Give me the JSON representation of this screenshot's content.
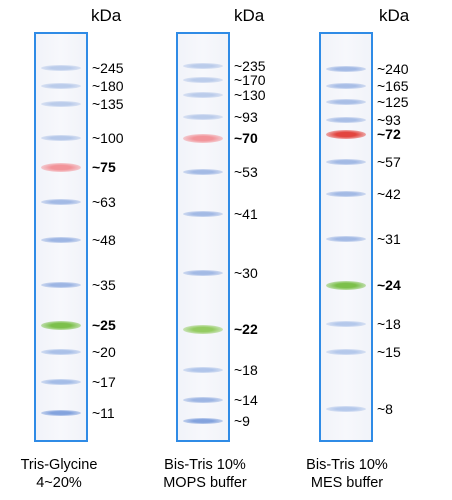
{
  "lanes": [
    {
      "unit": "kDa",
      "caption_line1": "Tris-Glycine",
      "caption_line2": "4~20%",
      "bands": [
        {
          "label": "~245",
          "bold": false,
          "color": "#8aa8dd",
          "intensity": 0.55
        },
        {
          "label": "~180",
          "bold": false,
          "color": "#8aa8dd",
          "intensity": 0.55
        },
        {
          "label": "~135",
          "bold": false,
          "color": "#8aa8dd",
          "intensity": 0.55
        },
        {
          "label": "~100",
          "bold": false,
          "color": "#8aa8dd",
          "intensity": 0.6
        },
        {
          "label": "~75",
          "bold": true,
          "color": "#f28f95",
          "intensity": 0.95
        },
        {
          "label": "~63",
          "bold": false,
          "color": "#7f9fdb",
          "intensity": 0.7
        },
        {
          "label": "~48",
          "bold": false,
          "color": "#7f9fdb",
          "intensity": 0.75
        },
        {
          "label": "~35",
          "bold": false,
          "color": "#7f9fdb",
          "intensity": 0.75
        },
        {
          "label": "~25",
          "bold": true,
          "color": "#7cc04b",
          "intensity": 1.0
        },
        {
          "label": "~20",
          "bold": false,
          "color": "#89a9e0",
          "intensity": 0.7
        },
        {
          "label": "~17",
          "bold": false,
          "color": "#89a9e0",
          "intensity": 0.75
        },
        {
          "label": "~11",
          "bold": false,
          "color": "#6f94d8",
          "intensity": 0.85
        }
      ]
    },
    {
      "unit": "kDa",
      "caption_line1": "Bis-Tris 10%",
      "caption_line2": "MOPS buffer",
      "bands": [
        {
          "label": "~235",
          "bold": false,
          "color": "#8aa8dd",
          "intensity": 0.55
        },
        {
          "label": "~170",
          "bold": false,
          "color": "#8aa8dd",
          "intensity": 0.55
        },
        {
          "label": "~130",
          "bold": false,
          "color": "#8aa8dd",
          "intensity": 0.55
        },
        {
          "label": "~93",
          "bold": false,
          "color": "#8aa8dd",
          "intensity": 0.55
        },
        {
          "label": "~70",
          "bold": true,
          "color": "#f28f95",
          "intensity": 0.95
        },
        {
          "label": "~53",
          "bold": false,
          "color": "#7f9fdb",
          "intensity": 0.7
        },
        {
          "label": "~41",
          "bold": false,
          "color": "#7f9fdb",
          "intensity": 0.7
        },
        {
          "label": "~30",
          "bold": false,
          "color": "#7f9fdb",
          "intensity": 0.7
        },
        {
          "label": "~22",
          "bold": true,
          "color": "#8fc95a",
          "intensity": 0.95
        },
        {
          "label": "~18",
          "bold": false,
          "color": "#89a9e0",
          "intensity": 0.65
        },
        {
          "label": "~14",
          "bold": false,
          "color": "#7f9fdb",
          "intensity": 0.75
        },
        {
          "label": "~9",
          "bold": false,
          "color": "#6f94d8",
          "intensity": 0.85
        }
      ]
    },
    {
      "unit": "kDa",
      "caption_line1": "Bis-Tris 10%",
      "caption_line2": "MES buffer",
      "bands": [
        {
          "label": "~240",
          "bold": false,
          "color": "#7f9fdb",
          "intensity": 0.7
        },
        {
          "label": "~165",
          "bold": false,
          "color": "#7f9fdb",
          "intensity": 0.65
        },
        {
          "label": "~125",
          "bold": false,
          "color": "#7f9fdb",
          "intensity": 0.65
        },
        {
          "label": "~93",
          "bold": false,
          "color": "#7f9fdb",
          "intensity": 0.65
        },
        {
          "label": "~72",
          "bold": true,
          "color": "#e2453f",
          "intensity": 1.0
        },
        {
          "label": "~57",
          "bold": false,
          "color": "#7f9fdb",
          "intensity": 0.7
        },
        {
          "label": "~42",
          "bold": false,
          "color": "#7f9fdb",
          "intensity": 0.7
        },
        {
          "label": "~31",
          "bold": false,
          "color": "#7f9fdb",
          "intensity": 0.7
        },
        {
          "label": "~24",
          "bold": true,
          "color": "#7cc04b",
          "intensity": 1.0
        },
        {
          "label": "~18",
          "bold": false,
          "color": "#89a9e0",
          "intensity": 0.6
        },
        {
          "label": "~15",
          "bold": false,
          "color": "#89a9e0",
          "intensity": 0.6
        },
        {
          "label": "~8",
          "bold": false,
          "color": "#89a9e0",
          "intensity": 0.6
        }
      ]
    }
  ]
}
